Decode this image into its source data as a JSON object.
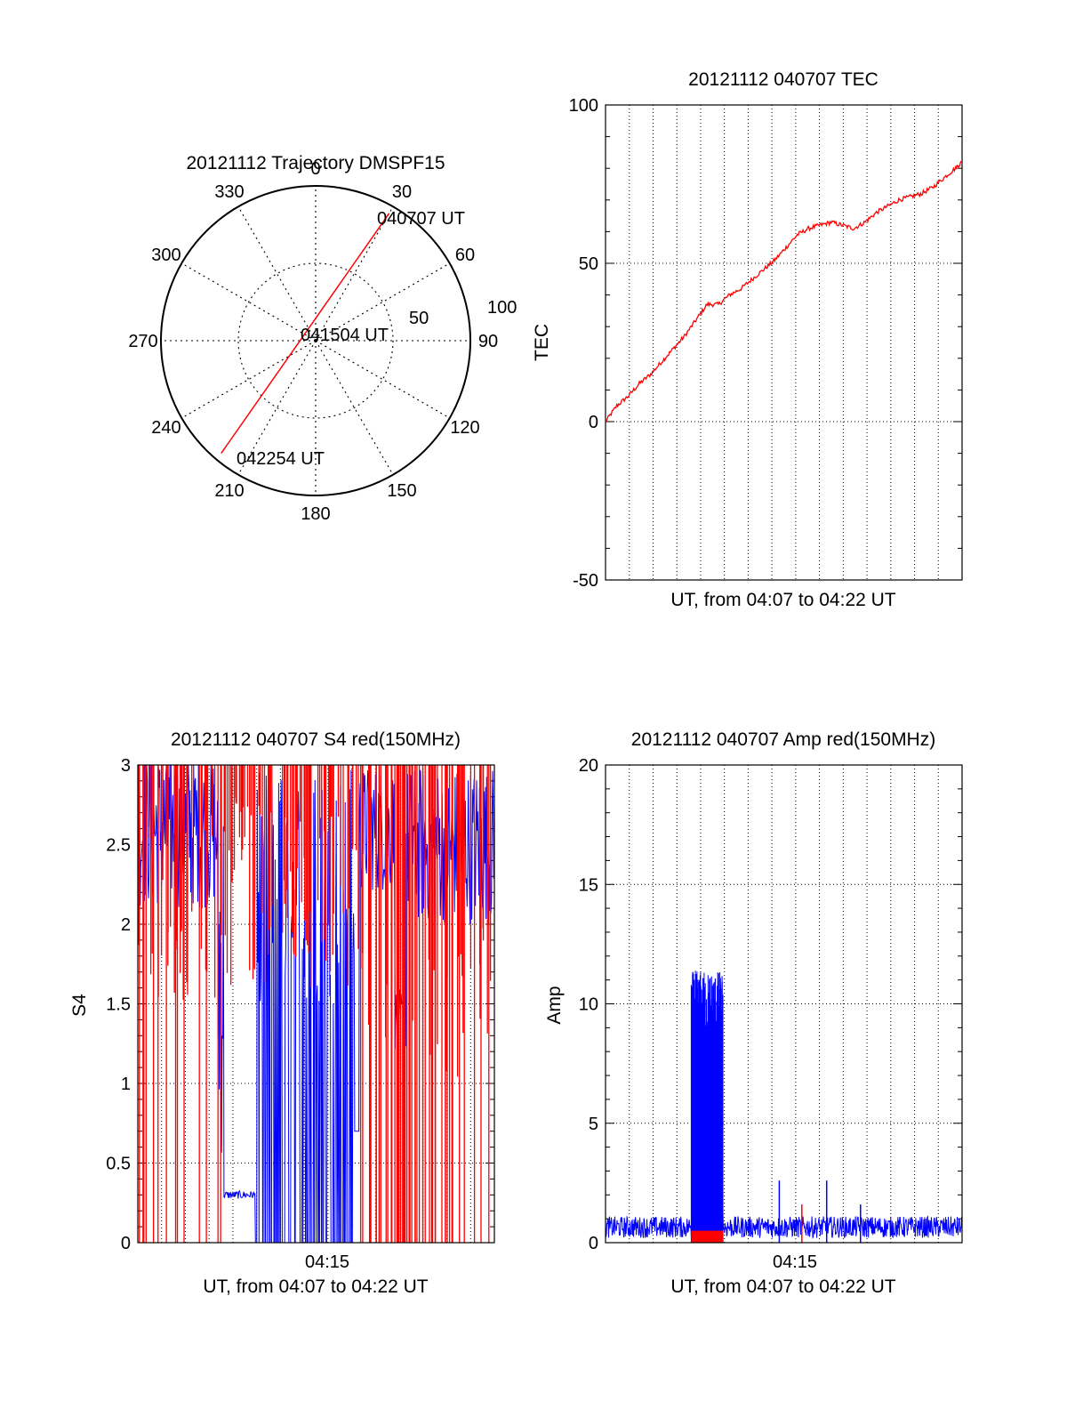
{
  "colors": {
    "red": "#ff0000",
    "blue": "#0000ff",
    "axis": "#000000",
    "grid": "#000000"
  },
  "polar": {
    "title": "20121112 Trajectory DMSPF15",
    "angle_labels": [
      "0",
      "30",
      "60",
      "90",
      "120",
      "150",
      "180",
      "210",
      "240",
      "270",
      "300",
      "330"
    ],
    "radius_labels": [
      "50",
      "100"
    ],
    "annotations": [
      "040707 UT",
      "041504 UT",
      "042254 UT"
    ]
  },
  "chart_data": [
    {
      "type": "polar",
      "title": "20121112 Trajectory DMSPF15",
      "angle_ticks": [
        0,
        30,
        60,
        90,
        120,
        150,
        180,
        210,
        240,
        270,
        300,
        330
      ],
      "radius_rings": [
        50,
        100
      ],
      "trajectory": {
        "start": [
          30,
          95
        ],
        "end": [
          220,
          95
        ],
        "color": "red"
      },
      "annotations": [
        {
          "text": "040707 UT",
          "at": "start"
        },
        {
          "text": "041504 UT",
          "at": "center"
        },
        {
          "text": "042254 UT",
          "at": "end"
        }
      ]
    },
    {
      "type": "line",
      "title": "20121112 040707 TEC",
      "xlabel": "UT, from 04:07 to 04:22 UT",
      "ylabel": "TEC",
      "ylim": [
        -50,
        100
      ],
      "yticks": [
        "-50",
        "0",
        "50",
        "100"
      ],
      "xlim_minutes": [
        0,
        15.8
      ],
      "grid": "dotted",
      "series": [
        {
          "color": "red",
          "x": [
            0,
            0.5,
            1,
            1.5,
            2,
            2.5,
            3,
            3.5,
            4,
            4.5,
            5,
            5.5,
            6,
            6.5,
            7,
            7.5,
            8,
            8.5,
            9,
            9.5,
            10,
            10.5,
            11,
            11.5,
            12,
            12.5,
            13,
            13.5,
            14,
            14.5,
            15,
            15.5,
            15.8
          ],
          "y": [
            0,
            5,
            8,
            12,
            15,
            19,
            23,
            27,
            32,
            37,
            37,
            40,
            42,
            45,
            48,
            51,
            55,
            59,
            61,
            62,
            63,
            62,
            61,
            63,
            66,
            68,
            70,
            71,
            72,
            74,
            77,
            80,
            82
          ]
        }
      ]
    },
    {
      "type": "line",
      "title": "20121112 040707 S4 red(150MHz)",
      "xlabel": "UT, from 04:07 to 04:22 UT",
      "ylabel": "S4",
      "ylim": [
        0,
        3
      ],
      "yticks": [
        "0",
        "0.5",
        "1",
        "1.5",
        "2",
        "2.5",
        "3"
      ],
      "xticks": [
        "04:15"
      ],
      "xlim_minutes": [
        0,
        15.8
      ],
      "grid": "dotted",
      "series": [
        {
          "color": "blue",
          "segments": [
            [
              0,
              2.7
            ],
            [
              3,
              2.5
            ],
            [
              3.8,
              0.3
            ],
            [
              5.2,
              0.3
            ],
            [
              5.3,
              2.6
            ],
            [
              9.6,
              0.7
            ],
            [
              11.6,
              1.5
            ],
            [
              15.8,
              2.9
            ]
          ]
        },
        {
          "color": "red",
          "segments": [
            [
              0,
              2.8
            ],
            [
              4.5,
              2.9
            ],
            [
              10,
              2.9
            ],
            [
              15.8,
              2.9
            ]
          ]
        }
      ]
    },
    {
      "type": "line",
      "title": "20121112 040707 Amp red(150MHz)",
      "xlabel": "UT, from 04:07 to 04:22 UT",
      "ylabel": "Amp",
      "ylim": [
        0,
        20
      ],
      "yticks": [
        "0",
        "5",
        "10",
        "15",
        "20"
      ],
      "xticks": [
        "04:15"
      ],
      "xlim_minutes": [
        0,
        15.8
      ],
      "grid": "dotted",
      "series": [
        {
          "color": "blue",
          "baseline": 0.5,
          "burst": {
            "x": [
              3.8,
              5.2
            ],
            "max": 11.4
          },
          "spikes": [
            [
              7.7,
              2.6
            ],
            [
              9.8,
              2.6
            ],
            [
              11.3,
              1.6
            ]
          ]
        },
        {
          "color": "red",
          "burst": {
            "x": [
              3.8,
              5.2
            ],
            "max": 0.5
          },
          "spikes": [
            [
              8.7,
              1.6
            ]
          ]
        }
      ]
    }
  ]
}
